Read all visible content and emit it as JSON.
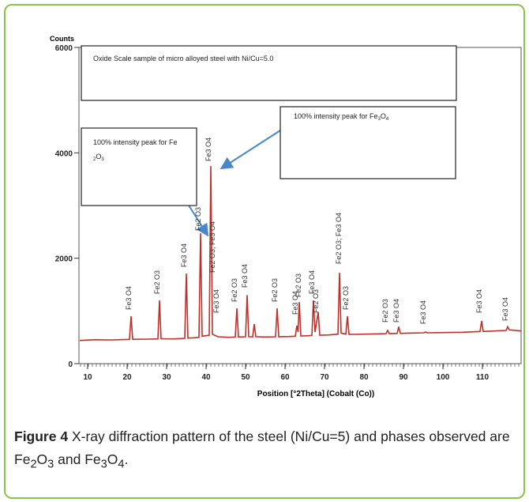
{
  "chart_data": {
    "type": "line",
    "ylabel": "Counts",
    "xlabel": "Position [°2Theta] (Cobalt (Co))",
    "xlim": [
      7.8,
      119.8
    ],
    "ylim": [
      0,
      6000
    ],
    "xticks": [
      10,
      20,
      30,
      40,
      50,
      60,
      70,
      80,
      90,
      100,
      110
    ],
    "yticks": [
      0,
      2000,
      4000,
      6000
    ],
    "x": [
      8,
      12,
      16,
      20.6,
      21,
      21.4,
      25,
      27.8,
      28.2,
      28.6,
      32,
      34.6,
      35,
      35.4,
      37,
      38.2,
      38.6,
      39,
      40.8,
      41.2,
      41.6,
      43,
      46,
      47.4,
      47.8,
      48.2,
      50,
      50.4,
      50.8,
      51.8,
      52.2,
      52.6,
      55,
      57.6,
      58,
      58.4,
      61,
      62.6,
      63,
      63.3,
      63.6,
      64,
      66,
      66.8,
      67.2,
      67.6,
      68.4,
      68.8,
      71,
      73.4,
      73.8,
      74.2,
      75.4,
      75.8,
      76.2,
      80,
      84,
      85.6,
      86,
      86.4,
      88.4,
      88.8,
      89.2,
      92,
      95.2,
      95.6,
      96,
      100,
      105,
      109.4,
      109.8,
      110.2,
      113,
      116,
      116.4,
      116.8,
      119.8
    ],
    "series": [
      {
        "name": "Counts",
        "color": "#c0302a",
        "values": [
          440,
          455,
          450,
          460,
          900,
          462,
          465,
          470,
          1200,
          472,
          470,
          480,
          1710,
          485,
          490,
          500,
          2475,
          520,
          540,
          3750,
          560,
          510,
          500,
          505,
          1050,
          505,
          510,
          1300,
          512,
          510,
          750,
          512,
          505,
          510,
          1050,
          512,
          515,
          520,
          720,
          600,
          1170,
          525,
          530,
          535,
          1200,
          600,
          980,
          540,
          545,
          560,
          1725,
          580,
          560,
          900,
          555,
          560,
          565,
          570,
          630,
          570,
          575,
          700,
          575,
          580,
          585,
          600,
          585,
          590,
          595,
          610,
          810,
          610,
          620,
          630,
          700,
          640,
          620
        ]
      }
    ],
    "peak_labels": [
      "Fe3 O4",
      "Fe2 O3",
      "Fe3 O4",
      "Fe2 O3",
      "Fe3 O4",
      "Fe2 O3; Fe3 O4",
      "Fe3 O4",
      "Fe2 O3",
      "Fe3 O4",
      "Fe2 O3",
      "Fe3 O4",
      "Fe2 O3",
      "Fe3 O4",
      "Fe2 O3",
      "Fe2 O3; Fe3 O4",
      "Fe2 O3",
      "Fe2 O3",
      "Fe3 O4",
      "Fe3 O4",
      "Fe3 O4",
      "Fe3 O4"
    ],
    "boxes": [
      [
        "Oxide Scale sample of micro alloyed steel with Ni/Cu=5.0"
      ],
      [
        "100% intensity peak for Fe",
        "3",
        "O",
        "4"
      ],
      [
        "100% intensity peak for Fe",
        "2",
        "O",
        "3"
      ]
    ]
  },
  "caption": {
    "label": "Figure 4",
    "text": [
      " X-ray diffraction pattern of the steel (Ni/Cu=5) and phases observed are Fe",
      "2",
      "O",
      "3",
      " and Fe",
      "3",
      "O",
      "4",
      "."
    ]
  }
}
